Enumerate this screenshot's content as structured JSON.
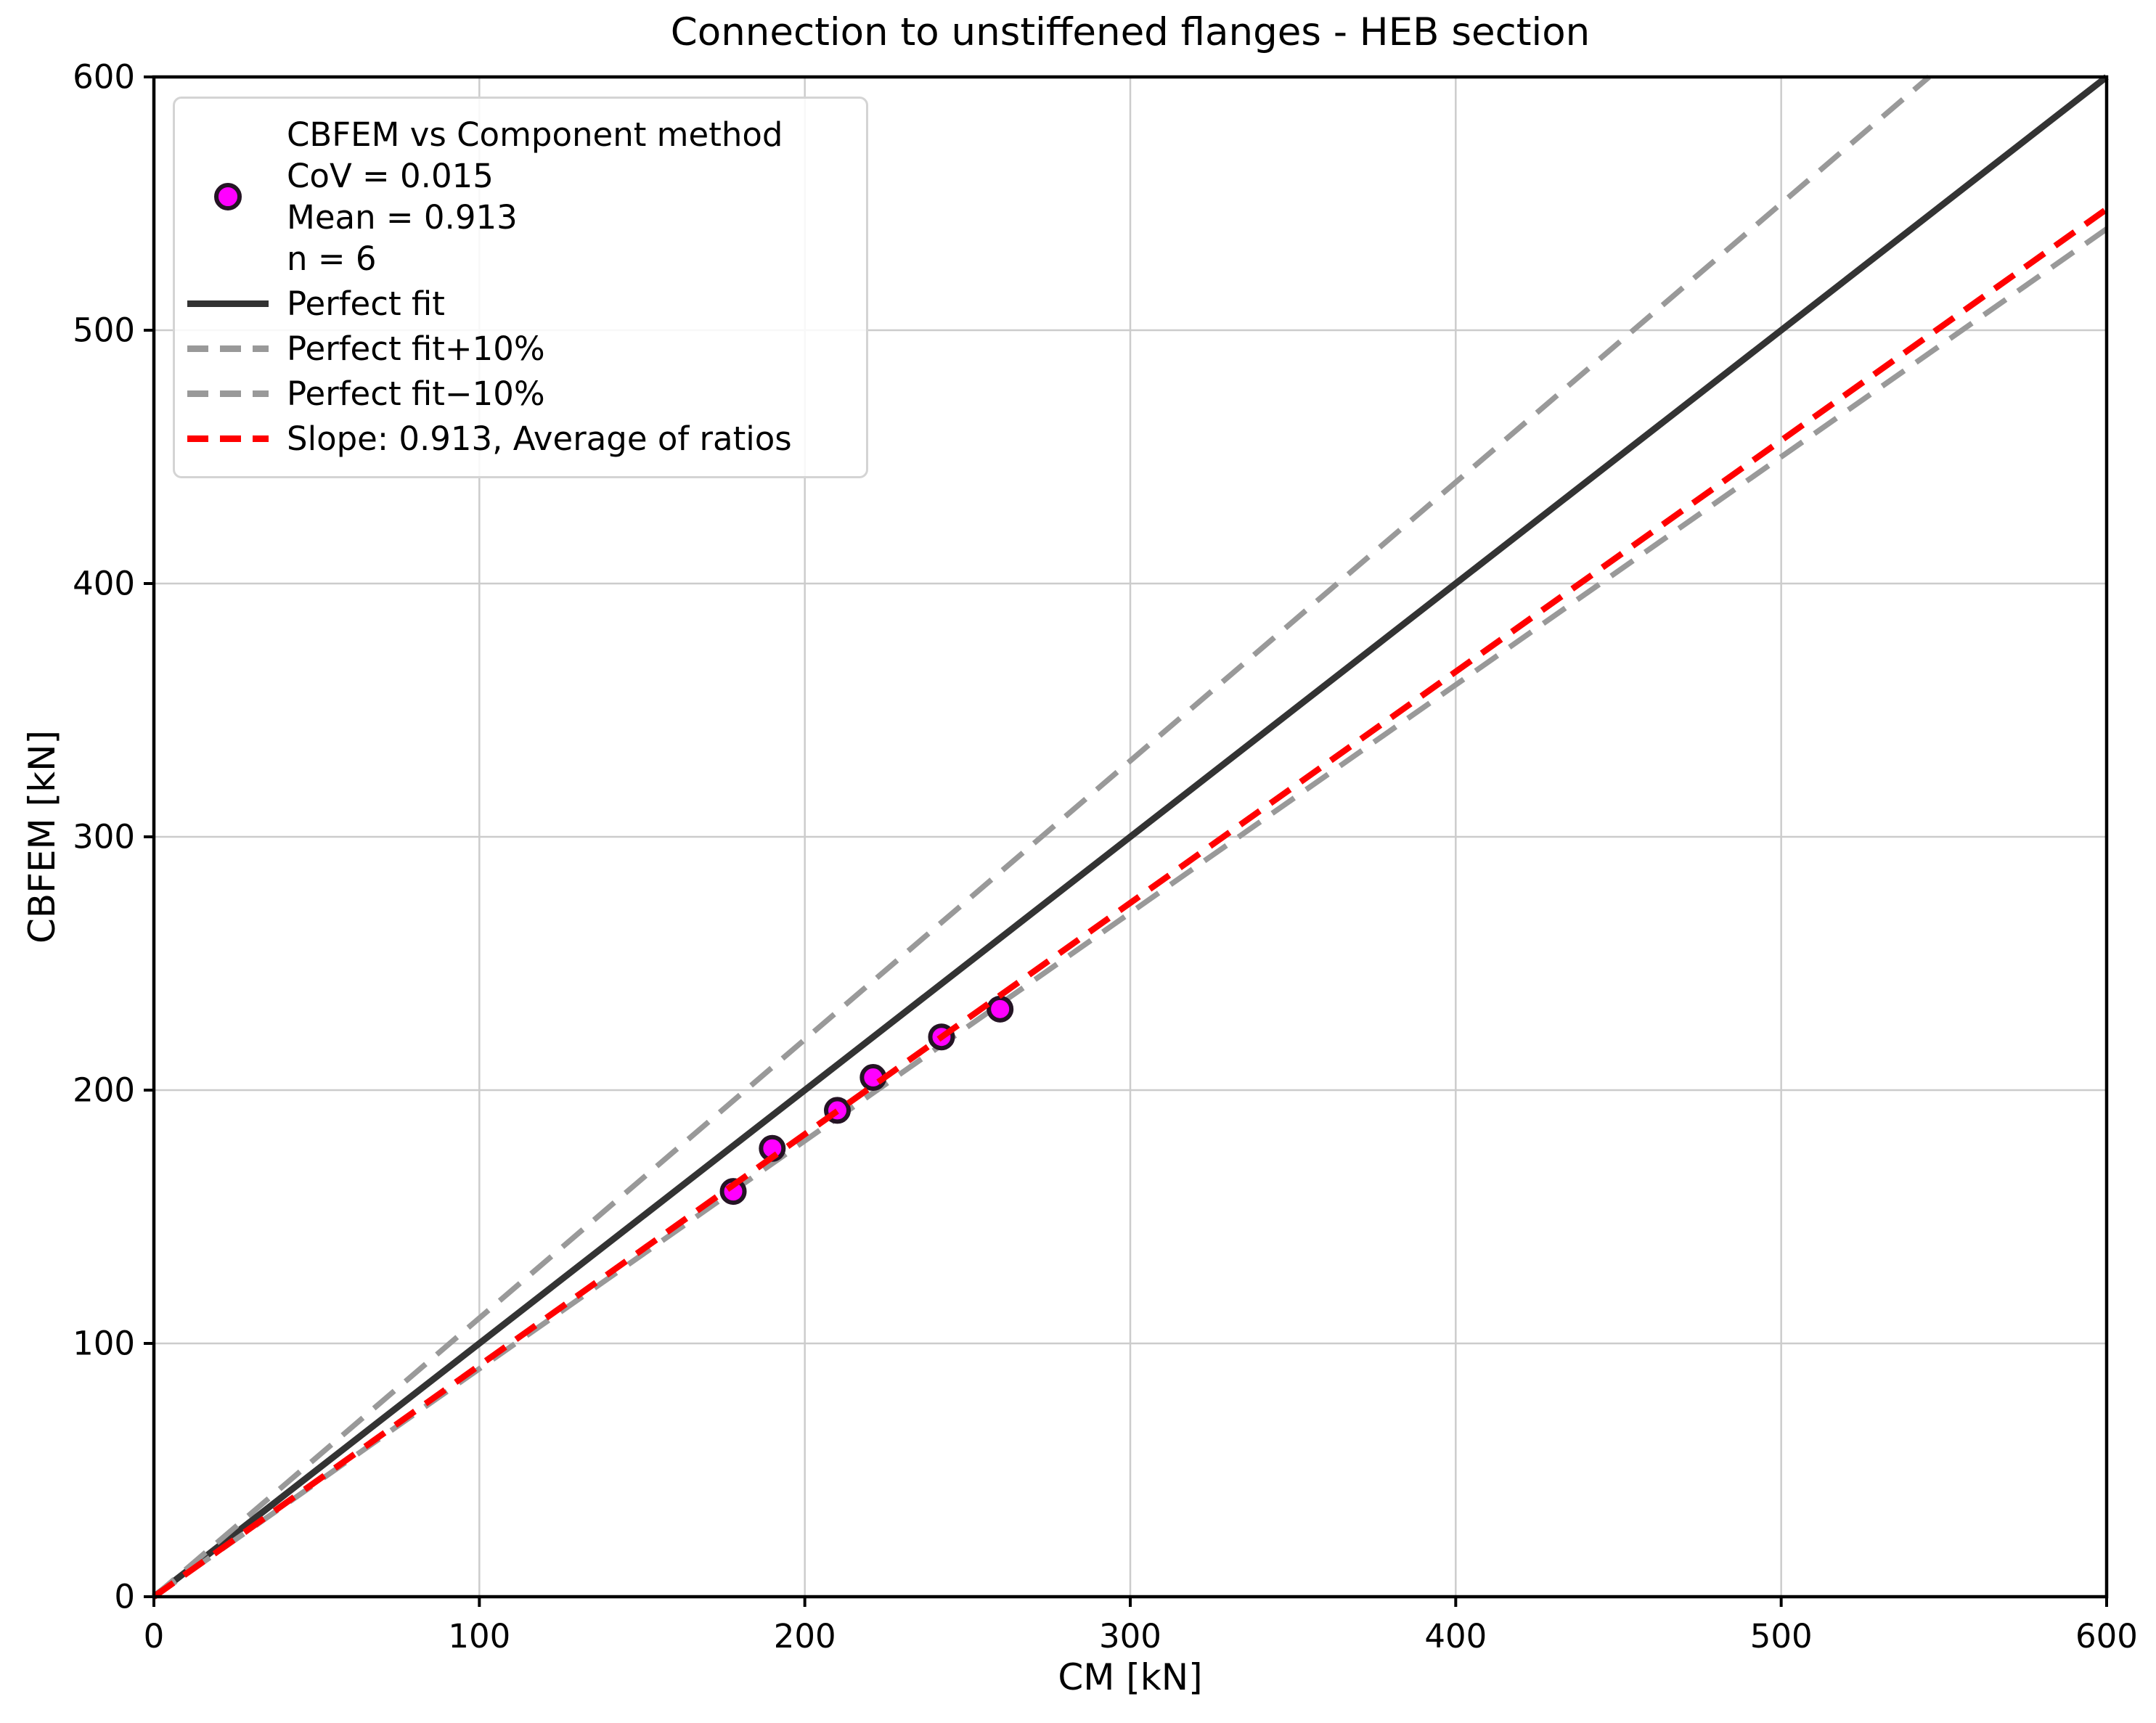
{
  "chart_data": {
    "type": "scatter",
    "title": "Connection to unstiffened flanges - HEB section",
    "xlabel": "CM [kN]",
    "ylabel": "CBFEM [kN]",
    "xlim": [
      0,
      600
    ],
    "ylim": [
      0,
      600
    ],
    "xticks": [
      0,
      100,
      200,
      300,
      400,
      500,
      600
    ],
    "yticks": [
      0,
      100,
      200,
      300,
      400,
      500,
      600
    ],
    "grid": true,
    "legend_position": "upper left",
    "colors": {
      "grid": "#cccccc",
      "axes": "#000000",
      "marker_fill": "#ff00ff",
      "marker_edge": "#241424",
      "perfect_fit": "#333333",
      "tolerance_band": "#999999",
      "ratio_line": "#ff0000"
    },
    "stats": {
      "cov": "0.015",
      "mean": "0.913",
      "n": "6"
    },
    "series": [
      {
        "name": "CBFEM vs Component method",
        "type": "scatter",
        "marker": "circle",
        "color": "#ff00ff",
        "edge_color": "#241424",
        "points": [
          [
            178,
            160
          ],
          [
            190,
            177
          ],
          [
            210,
            192
          ],
          [
            221,
            205
          ],
          [
            242,
            221
          ],
          [
            260,
            232
          ]
        ]
      },
      {
        "name": "Perfect fit",
        "type": "line",
        "style": "solid",
        "color": "#333333",
        "slope": 1.0
      },
      {
        "name": "Perfect fit+10%",
        "type": "line",
        "style": "dashed",
        "color": "#999999",
        "slope": 1.1
      },
      {
        "name": "Perfect fit−10%",
        "type": "line",
        "style": "dashed",
        "color": "#999999",
        "slope": 0.9
      },
      {
        "name": "Slope: 0.913, Average of ratios",
        "type": "line",
        "style": "dashed",
        "color": "#ff0000",
        "slope": 0.913
      }
    ]
  },
  "legend": {
    "entries": [
      {
        "label": "CBFEM vs Component method\nCoV = 0.015\nMean = 0.913\nn = 6",
        "swatch": "scatter-marker"
      },
      {
        "label": "Perfect fit",
        "swatch": "solid-line"
      },
      {
        "label": "Perfect fit+10%",
        "swatch": "dashed-gray-line"
      },
      {
        "label": "Perfect fit−10%",
        "swatch": "dashed-gray-line"
      },
      {
        "label": "Slope: 0.913, Average of ratios",
        "swatch": "dashed-red-line"
      }
    ]
  }
}
